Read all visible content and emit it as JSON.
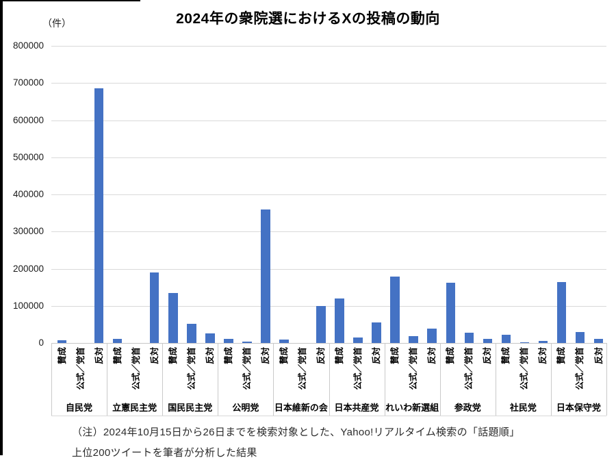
{
  "title": "2024年の衆院選におけるXの投稿の動向",
  "unit_label": "（件）",
  "footnote": {
    "line1": "（注）2024年10月15日から26日までを検索対象とした、Yahoo!リアルタイム検索の「話題順」",
    "line2": "上位200ツイートを筆者が分析した結果"
  },
  "colors": {
    "bar": "#4472C4",
    "gridline": "#d9d9d9",
    "axis_line": "#c6c6c6",
    "frame": "#000000"
  },
  "chart_data": {
    "type": "bar",
    "title": "2024年の衆院選におけるXの投稿の動向",
    "ylabel": "（件）",
    "categories": [
      "自民党",
      "立憲民主党",
      "国民民主党",
      "公明党",
      "日本維新の会",
      "日本共産党",
      "れいわ新選組",
      "参政党",
      "社民党",
      "日本保守党"
    ],
    "sub_categories": [
      "賛成",
      "公式／党首",
      "反対"
    ],
    "series": [
      {
        "name": "賛成",
        "values": [
          8000,
          12000,
          135000,
          12000,
          10000,
          119000,
          178000,
          163000,
          23000,
          165000
        ]
      },
      {
        "name": "公式／党首",
        "values": [
          0,
          0,
          52000,
          3000,
          0,
          15000,
          18000,
          27000,
          2000,
          30000
        ]
      },
      {
        "name": "反対",
        "values": [
          685000,
          190000,
          26000,
          360000,
          100000,
          55000,
          38000,
          12000,
          6000,
          11000
        ]
      }
    ],
    "ylim": [
      0,
      800000
    ],
    "ytick_step": 100000,
    "ytick_labels": [
      "0",
      "100000",
      "200000",
      "300000",
      "400000",
      "500000",
      "600000",
      "700000",
      "800000"
    ],
    "grid": true,
    "legend": false
  }
}
